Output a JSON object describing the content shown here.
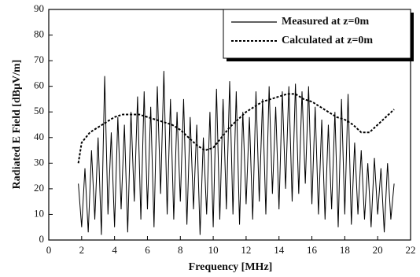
{
  "chart_data": {
    "type": "line",
    "xlabel": "Frequency [MHz]",
    "ylabel": "Radiated E Field [dBμV/m]",
    "xlim": [
      0,
      22
    ],
    "xticks": [
      0,
      2,
      4,
      6,
      8,
      10,
      12,
      14,
      16,
      18,
      20,
      22
    ],
    "ylim": [
      0,
      90
    ],
    "yticks": [
      0,
      10,
      20,
      30,
      40,
      50,
      60,
      70,
      80,
      90
    ],
    "legend": "upper right",
    "series": [
      {
        "name": "Measured at z=0m",
        "color": "#000000",
        "line_style": "solid",
        "x": [
          1.8,
          2,
          2.2,
          2.4,
          2.6,
          2.8,
          3,
          3.2,
          3.4,
          3.6,
          3.8,
          4,
          4.2,
          4.4,
          4.6,
          4.8,
          5,
          5.2,
          5.4,
          5.6,
          5.8,
          6,
          6.2,
          6.4,
          6.6,
          6.8,
          7,
          7.2,
          7.4,
          7.6,
          7.8,
          8,
          8.2,
          8.4,
          8.6,
          8.8,
          9,
          9.2,
          9.4,
          9.6,
          9.8,
          10,
          10.2,
          10.4,
          10.6,
          10.8,
          11,
          11.2,
          11.4,
          11.6,
          11.8,
          12,
          12.2,
          12.4,
          12.6,
          12.8,
          13,
          13.2,
          13.4,
          13.6,
          13.8,
          14,
          14.2,
          14.4,
          14.6,
          14.8,
          15,
          15.2,
          15.4,
          15.6,
          15.8,
          16,
          16.2,
          16.4,
          16.6,
          16.8,
          17,
          17.2,
          17.4,
          17.6,
          17.8,
          18,
          18.2,
          18.4,
          18.6,
          18.8,
          19,
          19.2,
          19.4,
          19.6,
          19.8,
          20,
          20.2,
          20.4,
          20.6,
          20.8,
          21
        ],
        "values": [
          22,
          5,
          28,
          3,
          35,
          8,
          40,
          2,
          64,
          10,
          42,
          5,
          48,
          12,
          45,
          3,
          50,
          15,
          56,
          8,
          58,
          12,
          52,
          5,
          60,
          18,
          66,
          10,
          55,
          8,
          50,
          15,
          55,
          6,
          48,
          12,
          45,
          2,
          40,
          10,
          50,
          5,
          59,
          8,
          55,
          12,
          62,
          10,
          58,
          6,
          50,
          14,
          48,
          8,
          58,
          15,
          55,
          10,
          60,
          18,
          52,
          12,
          58,
          20,
          60,
          15,
          61,
          18,
          58,
          22,
          60,
          14,
          52,
          10,
          47,
          8,
          45,
          12,
          50,
          5,
          55,
          10,
          57,
          6,
          38,
          10,
          35,
          8,
          30,
          5,
          32,
          10,
          28,
          3,
          30,
          8,
          22
        ]
      },
      {
        "name": "Calculated at z=0m",
        "color": "#000000",
        "line_style": "dashed",
        "x": [
          1.8,
          2,
          2.5,
          3,
          3.5,
          4,
          4.5,
          5,
          5.5,
          6,
          6.5,
          7,
          7.5,
          8,
          8.5,
          9,
          9.5,
          10,
          10.5,
          11,
          11.5,
          12,
          12.5,
          13,
          13.5,
          14,
          14.5,
          15,
          15.5,
          16,
          16.5,
          17,
          17.5,
          18,
          18.5,
          19,
          19.5,
          20,
          20.5,
          21
        ],
        "values": [
          30,
          38,
          42,
          44,
          46,
          48,
          49,
          49,
          49,
          48,
          47,
          46,
          45,
          43,
          40,
          37,
          35,
          36,
          40,
          44,
          47,
          50,
          52,
          54,
          55,
          56,
          57,
          57,
          55,
          54,
          52,
          50,
          48,
          47,
          45,
          42,
          42,
          45,
          48,
          51
        ]
      }
    ]
  }
}
